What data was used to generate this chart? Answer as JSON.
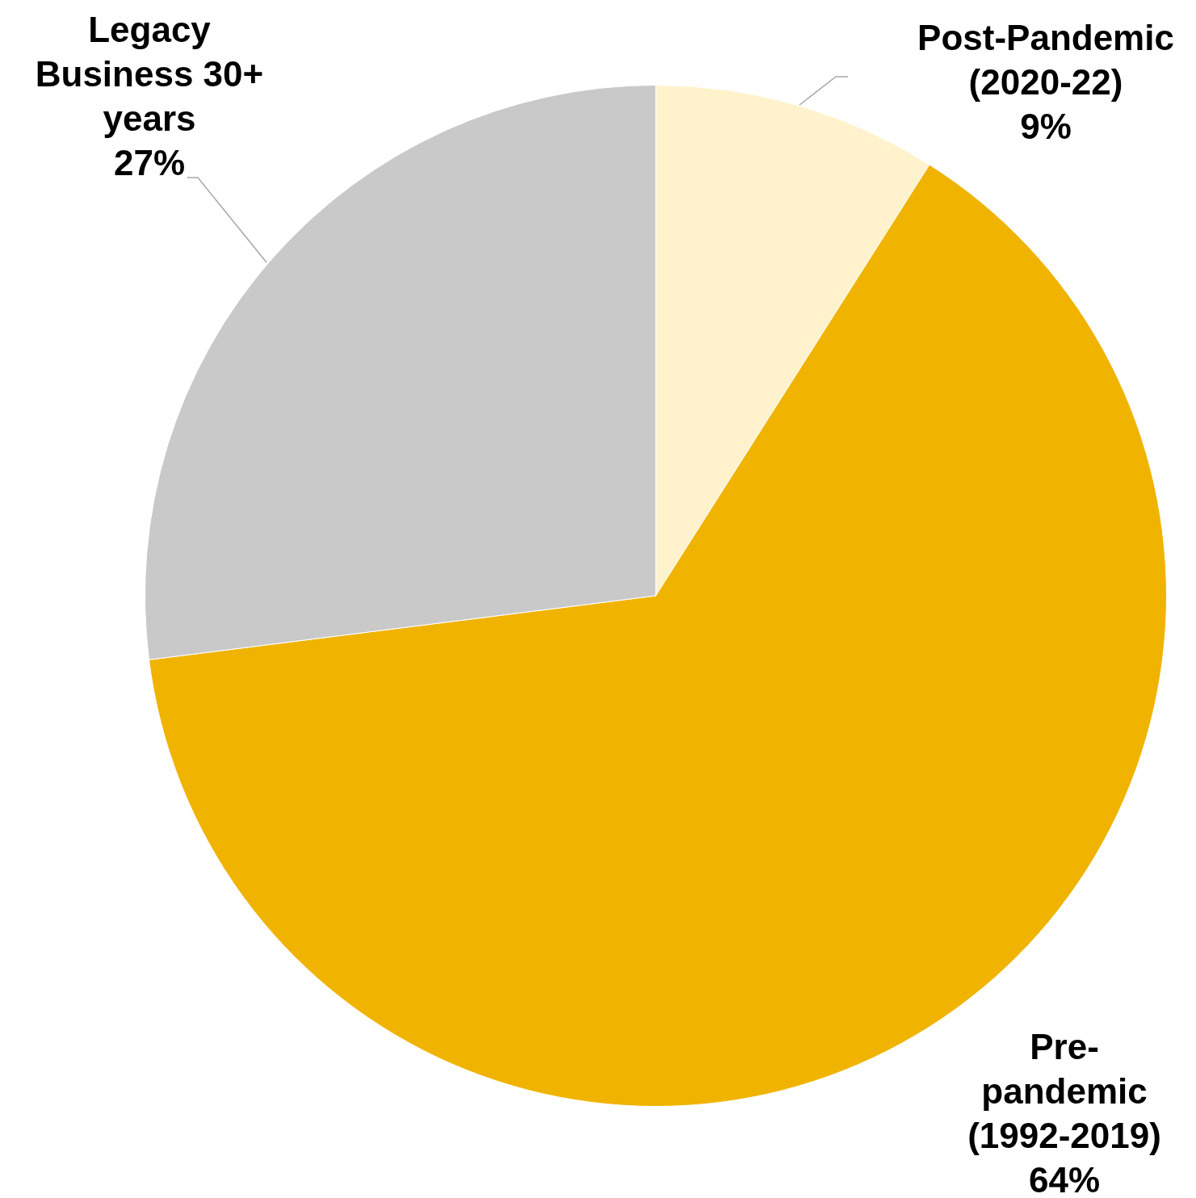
{
  "chart_data": {
    "type": "pie",
    "categories": [
      "Post-Pandemic (2020-22)",
      "Pre-pandemic (1992-2019)",
      "Legacy Business 30+ years"
    ],
    "values": [
      9,
      64,
      27
    ],
    "colors": [
      "#fff2cc",
      "#f0b400",
      "#c9c9c9"
    ],
    "value_labels": [
      "9%",
      "64%",
      "27%"
    ],
    "legend": false
  }
}
